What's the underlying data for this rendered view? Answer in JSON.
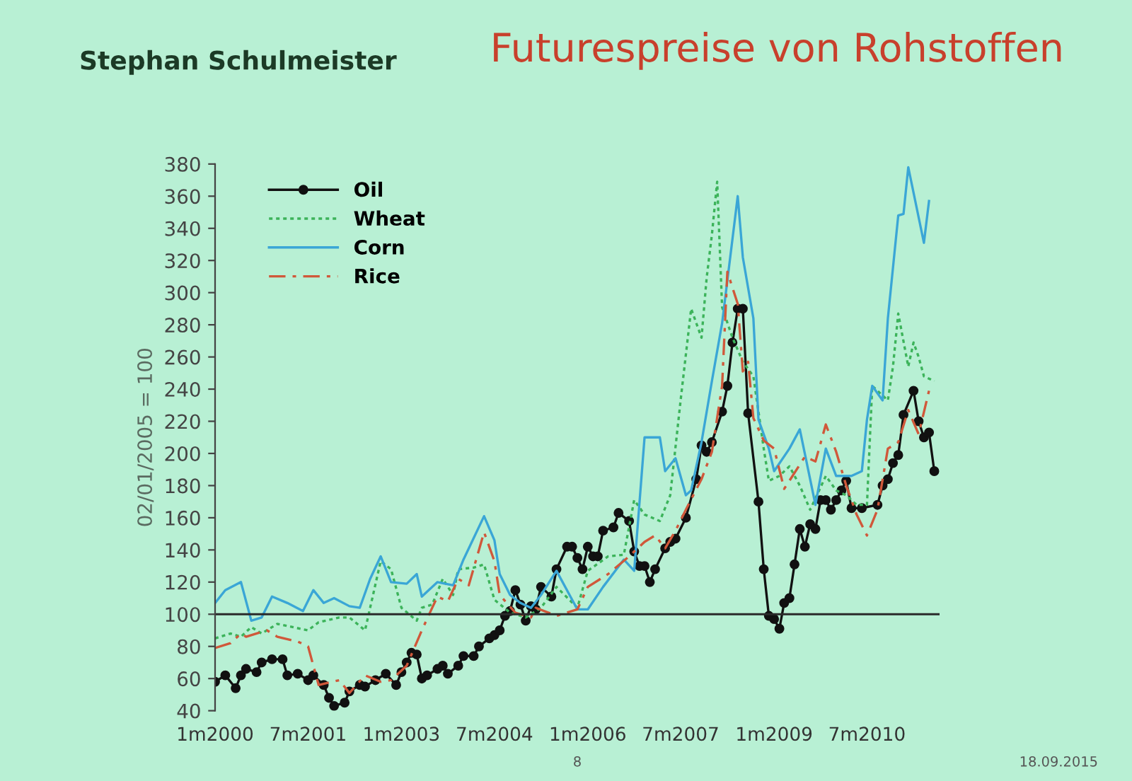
{
  "chart_data": {
    "type": "line",
    "title": "Futurespreise von Rohstoffen",
    "subtitle": "Stephan Schulmeister",
    "ylabel": "02/01/2005 = 100",
    "annotations": [
      "8",
      "18.09.2015"
    ],
    "ylim": [
      40,
      380
    ],
    "yticks": [
      40,
      60,
      80,
      100,
      120,
      140,
      160,
      180,
      200,
      220,
      240,
      260,
      280,
      300,
      320,
      340,
      360,
      380
    ],
    "xlim": [
      "2000-01",
      "2011-09"
    ],
    "xticks": [
      {
        "value": "2000-01",
        "label": "1m2000"
      },
      {
        "value": "2001-07",
        "label": "7m2001"
      },
      {
        "value": "2003-01",
        "label": "1m2003"
      },
      {
        "value": "2004-07",
        "label": "7m2004"
      },
      {
        "value": "2006-01",
        "label": "1m2006"
      },
      {
        "value": "2007-07",
        "label": "7m2007"
      },
      {
        "value": "2009-01",
        "label": "1m2009"
      },
      {
        "value": "2010-07",
        "label": "7m2010"
      }
    ],
    "ref_lines": [
      {
        "axis": "y",
        "value": 100,
        "color": "#2a2a2a"
      }
    ],
    "grid": false,
    "legend": "top left",
    "series": [
      {
        "name": "Oil",
        "color": "#111111",
        "marker": "circle",
        "line_style": "solid",
        "x": [
          "2000-01",
          "2000-03",
          "2000-05",
          "2000-06",
          "2000-07",
          "2000-09",
          "2000-10",
          "2000-12",
          "2001-02",
          "2001-03",
          "2001-05",
          "2001-07",
          "2001-08",
          "2001-10",
          "2001-11",
          "2001-12",
          "2002-02",
          "2002-03",
          "2002-05",
          "2002-06",
          "2002-08",
          "2002-10",
          "2002-12",
          "2003-01",
          "2003-02",
          "2003-03",
          "2003-04",
          "2003-05",
          "2003-06",
          "2003-08",
          "2003-09",
          "2003-10",
          "2003-12",
          "2004-01",
          "2004-03",
          "2004-04",
          "2004-06",
          "2004-07",
          "2004-08",
          "2004-09",
          "2004-10",
          "2004-11",
          "2004-12",
          "2005-01",
          "2005-02",
          "2005-03",
          "2005-04",
          "2005-06",
          "2005-07",
          "2005-09",
          "2005-10",
          "2005-11",
          "2005-12",
          "2006-01",
          "2006-02",
          "2006-03",
          "2006-04",
          "2006-06",
          "2006-07",
          "2006-09",
          "2006-10",
          "2006-11",
          "2006-12",
          "2007-01",
          "2007-02",
          "2007-04",
          "2007-05",
          "2007-06",
          "2007-08",
          "2007-10",
          "2007-11",
          "2007-12",
          "2008-01",
          "2008-03",
          "2008-04",
          "2008-05",
          "2008-06",
          "2008-07",
          "2008-08",
          "2008-10",
          "2008-11",
          "2008-12",
          "2009-01",
          "2009-02",
          "2009-03",
          "2009-04",
          "2009-05",
          "2009-06",
          "2009-07",
          "2009-08",
          "2009-09",
          "2009-10",
          "2009-11",
          "2009-12",
          "2010-01",
          "2010-02",
          "2010-03",
          "2010-04",
          "2010-06",
          "2010-09",
          "2010-10",
          "2010-11",
          "2010-12",
          "2011-01",
          "2011-02",
          "2011-04",
          "2011-05",
          "2011-06",
          "2011-07",
          "2011-08"
        ],
        "values": [
          58,
          62,
          54,
          62,
          66,
          64,
          70,
          72,
          72,
          62,
          63,
          59,
          62,
          56,
          48,
          43,
          45,
          52,
          56,
          55,
          59,
          63,
          56,
          64,
          70,
          76,
          75,
          60,
          62,
          66,
          68,
          63,
          68,
          74,
          74,
          80,
          85,
          87,
          90,
          99,
          102,
          115,
          106,
          96,
          105,
          103,
          117,
          111,
          128,
          142,
          142,
          135,
          128,
          142,
          136,
          136,
          152,
          154,
          163,
          158,
          139,
          130,
          130,
          120,
          128,
          141,
          145,
          147,
          160,
          184,
          205,
          201,
          207,
          226,
          242,
          269,
          290,
          290,
          225,
          170,
          128,
          99,
          97,
          91,
          107,
          110,
          131,
          153,
          142,
          156,
          153,
          171,
          171,
          165,
          171,
          177,
          183,
          166,
          166,
          168,
          180,
          184,
          194,
          199,
          224,
          239,
          220,
          210,
          213,
          189
        ]
      },
      {
        "name": "Wheat",
        "color": "#3cb35a",
        "marker": "none",
        "line_style": "dotted",
        "x": [
          "2000-01",
          "2000-04",
          "2000-06",
          "2000-08",
          "2000-10",
          "2001-01",
          "2001-04",
          "2001-07",
          "2001-09",
          "2002-01",
          "2002-03",
          "2002-06",
          "2002-09",
          "2002-11",
          "2003-01",
          "2003-04",
          "2003-05",
          "2003-07",
          "2003-09",
          "2003-11",
          "2003-12",
          "2004-03",
          "2004-05",
          "2004-07",
          "2004-10",
          "2005-01",
          "2005-04",
          "2005-07",
          "2005-11",
          "2006-01",
          "2006-05",
          "2006-08",
          "2006-10",
          "2006-12",
          "2007-03",
          "2007-05",
          "2007-07",
          "2007-09",
          "2007-11",
          "2007-12",
          "2008-01",
          "2008-02",
          "2008-03",
          "2008-05",
          "2008-07",
          "2008-09",
          "2008-11",
          "2008-12",
          "2009-02",
          "2009-04",
          "2009-06",
          "2009-08",
          "2009-11",
          "2010-01",
          "2010-03",
          "2010-05",
          "2010-07",
          "2010-08",
          "2010-11",
          "2010-12",
          "2011-01",
          "2011-03",
          "2011-04",
          "2011-05",
          "2011-06",
          "2011-08"
        ],
        "values": [
          85,
          88,
          86,
          92,
          88,
          94,
          92,
          90,
          95,
          98,
          98,
          90,
          133,
          128,
          104,
          96,
          104,
          106,
          122,
          112,
          128,
          129,
          131,
          109,
          101,
          98,
          104,
          117,
          104,
          127,
          136,
          137,
          171,
          162,
          158,
          174,
          233,
          290,
          272,
          309,
          336,
          369,
          291,
          272,
          257,
          248,
          203,
          183,
          186,
          192,
          180,
          165,
          186,
          177,
          174,
          168,
          168,
          242,
          233,
          254,
          287,
          254,
          269,
          260,
          248,
          245
        ]
      },
      {
        "name": "Corn",
        "color": "#3aa6d6",
        "marker": "none",
        "line_style": "solid",
        "x": [
          "2000-01",
          "2000-03",
          "2000-06",
          "2000-08",
          "2000-10",
          "2000-12",
          "2001-03",
          "2001-06",
          "2001-08",
          "2001-10",
          "2001-12",
          "2002-03",
          "2002-05",
          "2002-07",
          "2002-09",
          "2002-11",
          "2003-02",
          "2003-04",
          "2003-05",
          "2003-08",
          "2003-11",
          "2004-01",
          "2004-05",
          "2004-07",
          "2004-08",
          "2004-10",
          "2004-12",
          "2005-02",
          "2005-04",
          "2005-07",
          "2005-11",
          "2006-01",
          "2006-04",
          "2006-08",
          "2006-10",
          "2006-12",
          "2007-03",
          "2007-04",
          "2007-06",
          "2007-08",
          "2007-09",
          "2007-11",
          "2008-01",
          "2008-03",
          "2008-06",
          "2008-07",
          "2008-09",
          "2008-10",
          "2008-12",
          "2009-01",
          "2009-04",
          "2009-06",
          "2009-09",
          "2009-11",
          "2010-01",
          "2010-04",
          "2010-06",
          "2010-07",
          "2010-08",
          "2010-10",
          "2010-11",
          "2011-01",
          "2011-02",
          "2011-03",
          "2011-06",
          "2011-07"
        ],
        "values": [
          107,
          115,
          120,
          96,
          98,
          111,
          107,
          102,
          115,
          107,
          110,
          105,
          104,
          122,
          136,
          120,
          119,
          125,
          111,
          120,
          118,
          134,
          161,
          146,
          125,
          112,
          107,
          104,
          112,
          127,
          103,
          103,
          117,
          134,
          127,
          210,
          210,
          189,
          197,
          174,
          177,
          207,
          245,
          281,
          360,
          322,
          284,
          221,
          203,
          189,
          203,
          215,
          168,
          203,
          186,
          186,
          189,
          221,
          242,
          233,
          284,
          348,
          349,
          378,
          331,
          357
        ]
      },
      {
        "name": "Rice",
        "color": "#d0583a",
        "marker": "none",
        "line_style": "dashed",
        "x": [
          "2000-01",
          "2000-04",
          "2000-06",
          "2000-07",
          "2000-11",
          "2001-01",
          "2001-05",
          "2001-07",
          "2001-08",
          "2001-09",
          "2002-01",
          "2002-03",
          "2002-06",
          "2002-09",
          "2002-11",
          "2003-02",
          "2003-05",
          "2003-07",
          "2003-08",
          "2003-10",
          "2003-12",
          "2004-02",
          "2004-05",
          "2004-07",
          "2004-08",
          "2004-11",
          "2005-02",
          "2005-03",
          "2005-07",
          "2005-11",
          "2006-01",
          "2006-05",
          "2006-09",
          "2006-12",
          "2007-02",
          "2007-04",
          "2007-06",
          "2007-08",
          "2007-11",
          "2008-01",
          "2008-03",
          "2008-04",
          "2008-06",
          "2008-07",
          "2008-08",
          "2008-09",
          "2008-11",
          "2009-01",
          "2009-03",
          "2009-04",
          "2009-07",
          "2009-09",
          "2009-11",
          "2010-01",
          "2010-03",
          "2010-05",
          "2010-07",
          "2010-09",
          "2010-11",
          "2011-01",
          "2011-03",
          "2011-05",
          "2011-07"
        ],
        "values": [
          79,
          82,
          88,
          86,
          90,
          86,
          83,
          80,
          68,
          56,
          59,
          51,
          62,
          58,
          59,
          68,
          90,
          104,
          111,
          108,
          122,
          118,
          151,
          133,
          112,
          101,
          98,
          104,
          99,
          103,
          117,
          125,
          136,
          145,
          149,
          141,
          152,
          165,
          184,
          201,
          242,
          313,
          293,
          251,
          257,
          222,
          208,
          203,
          178,
          183,
          198,
          195,
          218,
          201,
          180,
          162,
          149,
          165,
          203,
          207,
          227,
          212,
          239
        ]
      }
    ]
  }
}
